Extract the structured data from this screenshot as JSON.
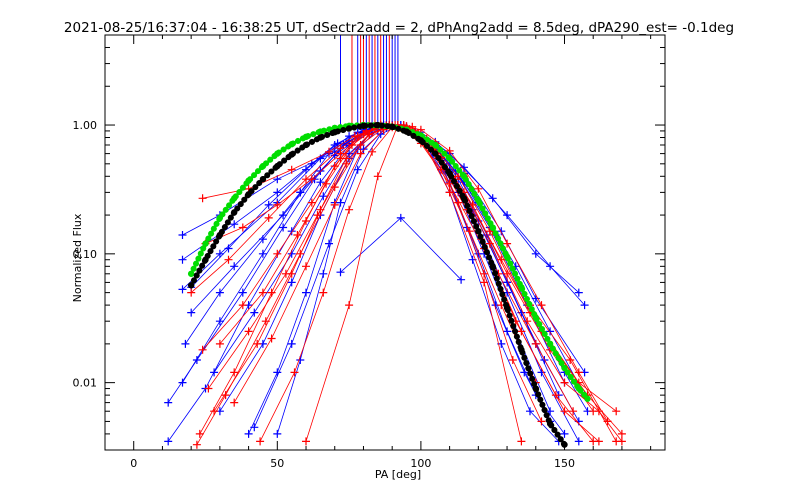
{
  "chart_data": {
    "type": "line",
    "title": "2021-08-25/16:37:04 - 16:38:25 UT, dSectr2add = 2, dPhAng2add = 8.5deg, dPA290_est= -0.1deg",
    "xlabel": "PA [deg]",
    "ylabel": "Normalized Flux",
    "xlim": [
      -10,
      185
    ],
    "ylim": [
      0.003,
      5.0
    ],
    "yscale": "log",
    "x_ticks": [
      0,
      50,
      100,
      150
    ],
    "y_ticks": [
      0.01,
      0.1,
      1.0
    ],
    "y_tick_labels": [
      "0.01",
      "0.10",
      "1.00"
    ],
    "grid": false,
    "legend": "none",
    "colors": {
      "red": "#ff0000",
      "blue": "#0000ff",
      "green": "#00dd00",
      "black": "#000000"
    },
    "peak_markers": {
      "x": [
        72,
        76,
        78,
        79,
        80,
        81,
        82,
        83,
        84,
        85,
        86,
        87,
        88,
        89,
        90,
        91,
        92
      ],
      "color": [
        "blue",
        "red",
        "blue",
        "red",
        "red",
        "blue",
        "red",
        "blue",
        "red",
        "blue",
        "red",
        "blue",
        "blue",
        "red",
        "blue",
        "blue",
        "blue"
      ],
      "y_from": 1.0,
      "y_to": 5.0
    },
    "series": [
      {
        "color": "green",
        "style": "thick-dots",
        "x": [
          20,
          25,
          30,
          35,
          40,
          45,
          50,
          55,
          60,
          65,
          70,
          75,
          80,
          85,
          90,
          95,
          100,
          105,
          110,
          115,
          120,
          125,
          130,
          135,
          140,
          145,
          150,
          155,
          158
        ],
        "y": [
          0.07,
          0.12,
          0.19,
          0.27,
          0.37,
          0.48,
          0.6,
          0.71,
          0.81,
          0.89,
          0.95,
          0.985,
          1.0,
          0.995,
          0.97,
          0.92,
          0.83,
          0.7,
          0.55,
          0.4,
          0.26,
          0.16,
          0.095,
          0.055,
          0.032,
          0.02,
          0.013,
          0.009,
          0.0075
        ]
      },
      {
        "color": "black",
        "style": "thick-dots",
        "x": [
          20,
          25,
          30,
          35,
          40,
          45,
          50,
          55,
          60,
          65,
          70,
          75,
          80,
          85,
          90,
          95,
          100,
          105,
          110,
          115,
          120,
          125,
          130,
          135,
          140,
          145,
          150
        ],
        "y": [
          0.057,
          0.09,
          0.14,
          0.21,
          0.29,
          0.38,
          0.48,
          0.59,
          0.7,
          0.8,
          0.88,
          0.94,
          0.985,
          1.0,
          0.97,
          0.89,
          0.76,
          0.6,
          0.42,
          0.27,
          0.15,
          0.08,
          0.038,
          0.018,
          0.009,
          0.0048,
          0.0033
        ]
      },
      {
        "color": "blue",
        "style": "line-plus",
        "x": [
          17,
          30,
          50,
          70,
          75,
          80,
          88,
          95,
          105,
          115,
          130,
          145,
          157
        ],
        "y": [
          0.14,
          0.2,
          0.38,
          0.62,
          0.75,
          0.88,
          0.98,
          0.93,
          0.74,
          0.47,
          0.2,
          0.08,
          0.04
        ]
      },
      {
        "color": "blue",
        "style": "line-plus",
        "x": [
          17,
          30,
          50,
          65,
          75,
          85,
          90,
          100,
          110,
          125,
          140,
          155
        ],
        "y": [
          0.053,
          0.1,
          0.25,
          0.55,
          0.82,
          0.96,
          1.0,
          0.88,
          0.6,
          0.27,
          0.1,
          0.05
        ]
      },
      {
        "color": "blue",
        "style": "line-plus",
        "x": [
          17,
          30,
          45,
          58,
          68,
          78,
          87,
          95,
          105,
          115,
          128,
          140,
          157
        ],
        "y": [
          0.01,
          0.03,
          0.1,
          0.3,
          0.6,
          0.88,
          1.0,
          0.95,
          0.7,
          0.42,
          0.15,
          0.045,
          0.012
        ]
      },
      {
        "color": "blue",
        "style": "line-plus",
        "x": [
          30,
          45,
          55,
          65,
          75,
          82,
          90,
          100,
          110,
          120,
          130,
          140
        ],
        "y": [
          0.006,
          0.02,
          0.06,
          0.2,
          0.55,
          0.85,
          0.98,
          0.83,
          0.45,
          0.18,
          0.06,
          0.02
        ]
      },
      {
        "color": "blue",
        "style": "line-plus",
        "x": [
          40,
          50,
          60,
          70,
          78,
          85,
          92,
          100,
          110,
          120,
          130,
          140,
          150
        ],
        "y": [
          0.004,
          0.012,
          0.05,
          0.25,
          0.65,
          0.92,
          1.0,
          0.8,
          0.36,
          0.1,
          0.025,
          0.008,
          0.004
        ]
      },
      {
        "color": "blue",
        "style": "line-plus",
        "x": [
          50,
          58,
          66,
          72,
          80,
          88,
          95,
          102,
          110,
          118,
          128,
          138,
          148
        ],
        "y": [
          0.004,
          0.015,
          0.07,
          0.25,
          0.65,
          0.95,
          0.98,
          0.7,
          0.3,
          0.09,
          0.02,
          0.006,
          0.0035
        ]
      },
      {
        "color": "blue",
        "style": "line-plus",
        "x": [
          17,
          35,
          50,
          62,
          70,
          78,
          86,
          94,
          102,
          110,
          120,
          133,
          145,
          157
        ],
        "y": [
          0.09,
          0.17,
          0.3,
          0.5,
          0.7,
          0.87,
          0.98,
          0.96,
          0.78,
          0.5,
          0.25,
          0.08,
          0.025,
          0.008
        ]
      },
      {
        "color": "blue",
        "style": "line-plus",
        "x": [
          12,
          25,
          40,
          55,
          65,
          75,
          85,
          93,
          100,
          108,
          118,
          130,
          142,
          155
        ],
        "y": [
          0.0035,
          0.009,
          0.04,
          0.15,
          0.36,
          0.7,
          0.96,
          1.0,
          0.82,
          0.5,
          0.2,
          0.05,
          0.012,
          0.0035
        ]
      },
      {
        "color": "blue",
        "style": "line-plus",
        "x": [
          18,
          30,
          45,
          58,
          70,
          80,
          88,
          95,
          105,
          113,
          123,
          135,
          148
        ],
        "y": [
          0.02,
          0.05,
          0.13,
          0.3,
          0.58,
          0.86,
          0.99,
          0.97,
          0.68,
          0.38,
          0.14,
          0.035,
          0.008
        ]
      },
      {
        "color": "blue",
        "style": "line-plus",
        "x": [
          20,
          35,
          52,
          65,
          74,
          82,
          89,
          97,
          106,
          115,
          126,
          138,
          150,
          158
        ],
        "y": [
          0.035,
          0.08,
          0.2,
          0.44,
          0.72,
          0.92,
          1.0,
          0.92,
          0.64,
          0.36,
          0.14,
          0.04,
          0.012,
          0.006
        ]
      },
      {
        "color": "blue",
        "style": "line-plus",
        "x": [
          12,
          22,
          38,
          52,
          63,
          73,
          82,
          90,
          98,
          107,
          118,
          130,
          143,
          155
        ],
        "y": [
          0.007,
          0.015,
          0.05,
          0.16,
          0.38,
          0.7,
          0.93,
          1.0,
          0.88,
          0.55,
          0.22,
          0.06,
          0.015,
          0.005
        ]
      },
      {
        "color": "blue",
        "style": "line-plus",
        "x": [
          28,
          42,
          55,
          66,
          75,
          83,
          90,
          97,
          105,
          113,
          122,
          133,
          145
        ],
        "y": [
          0.012,
          0.035,
          0.1,
          0.28,
          0.6,
          0.88,
          0.99,
          0.9,
          0.6,
          0.3,
          0.1,
          0.025,
          0.006
        ]
      },
      {
        "color": "blue",
        "style": "line-plus",
        "x": [
          20,
          33,
          47,
          60,
          71,
          80,
          88,
          96,
          104,
          112,
          124,
          137,
          150
        ],
        "y": [
          0.055,
          0.11,
          0.24,
          0.45,
          0.72,
          0.92,
          1.0,
          0.9,
          0.7,
          0.44,
          0.16,
          0.04,
          0.01
        ]
      },
      {
        "color": "blue",
        "style": "line-plus",
        "x": [
          42,
          55,
          68,
          78,
          86,
          93,
          100,
          108,
          116,
          126,
          136,
          145
        ],
        "y": [
          0.0045,
          0.02,
          0.12,
          0.45,
          0.85,
          1.0,
          0.83,
          0.45,
          0.16,
          0.04,
          0.012,
          0.005
        ]
      },
      {
        "color": "blue",
        "style": "line-plus",
        "x": [
          72,
          93,
          114
        ],
        "y": [
          0.072,
          0.19,
          0.063
        ]
      },
      {
        "color": "red",
        "style": "line-plus",
        "x": [
          24,
          40,
          55,
          68,
          77,
          85,
          92,
          100,
          110,
          120,
          130,
          142,
          155,
          165
        ],
        "y": [
          0.27,
          0.32,
          0.45,
          0.62,
          0.82,
          0.95,
          1.0,
          0.92,
          0.63,
          0.32,
          0.12,
          0.04,
          0.012,
          0.005
        ]
      },
      {
        "color": "red",
        "style": "line-plus",
        "x": [
          25,
          38,
          50,
          62,
          72,
          80,
          88,
          95,
          105,
          115,
          125,
          138,
          152,
          168
        ],
        "y": [
          0.12,
          0.16,
          0.24,
          0.38,
          0.6,
          0.85,
          0.99,
          0.98,
          0.72,
          0.4,
          0.15,
          0.04,
          0.015,
          0.0035
        ]
      },
      {
        "color": "red",
        "style": "line-plus",
        "x": [
          23,
          35,
          48,
          60,
          70,
          78,
          86,
          93,
          100,
          110,
          122,
          135,
          150,
          162
        ],
        "y": [
          0.004,
          0.012,
          0.05,
          0.18,
          0.48,
          0.82,
          1.0,
          0.95,
          0.72,
          0.35,
          0.11,
          0.025,
          0.006,
          0.0035
        ]
      },
      {
        "color": "red",
        "style": "line-plus",
        "x": [
          28,
          43,
          55,
          65,
          74,
          82,
          89,
          97,
          106,
          116,
          127,
          140,
          153
        ],
        "y": [
          0.006,
          0.02,
          0.07,
          0.22,
          0.55,
          0.85,
          0.98,
          0.88,
          0.55,
          0.22,
          0.07,
          0.02,
          0.006
        ]
      },
      {
        "color": "red",
        "style": "line-plus",
        "x": [
          30,
          45,
          57,
          67,
          76,
          84,
          91,
          98,
          107,
          117,
          128,
          140
        ],
        "y": [
          0.02,
          0.05,
          0.14,
          0.35,
          0.7,
          0.94,
          1.0,
          0.85,
          0.45,
          0.15,
          0.04,
          0.01
        ]
      },
      {
        "color": "red",
        "style": "line-plus",
        "x": [
          22,
          32,
          46,
          58,
          70,
          79,
          87,
          94,
          103,
          112,
          124,
          137,
          150,
          162,
          170
        ],
        "y": [
          0.0033,
          0.008,
          0.03,
          0.1,
          0.33,
          0.7,
          0.95,
          0.99,
          0.74,
          0.38,
          0.12,
          0.03,
          0.01,
          0.006,
          0.0035
        ]
      },
      {
        "color": "red",
        "style": "line-plus",
        "x": [
          44,
          56,
          66,
          75,
          83,
          90,
          97,
          105,
          113,
          122,
          132,
          142
        ],
        "y": [
          0.0035,
          0.012,
          0.05,
          0.22,
          0.62,
          0.96,
          0.97,
          0.6,
          0.25,
          0.07,
          0.015,
          0.005
        ]
      },
      {
        "color": "red",
        "style": "line-plus",
        "x": [
          24,
          38,
          50,
          62,
          72,
          80,
          88,
          96,
          105,
          115,
          128,
          142,
          158,
          170
        ],
        "y": [
          0.018,
          0.04,
          0.1,
          0.25,
          0.55,
          0.85,
          0.99,
          0.92,
          0.62,
          0.3,
          0.09,
          0.025,
          0.008,
          0.004
        ]
      },
      {
        "color": "red",
        "style": "line-plus",
        "x": [
          20,
          33,
          47,
          60,
          72,
          81,
          89,
          96,
          104,
          113,
          124,
          138,
          155,
          168
        ],
        "y": [
          0.05,
          0.09,
          0.19,
          0.38,
          0.66,
          0.9,
          1.0,
          0.93,
          0.7,
          0.4,
          0.15,
          0.035,
          0.01,
          0.006
        ]
      },
      {
        "color": "red",
        "style": "line-plus",
        "x": [
          35,
          48,
          60,
          70,
          79,
          87,
          94,
          102,
          111,
          121,
          133,
          147,
          160
        ],
        "y": [
          0.007,
          0.022,
          0.08,
          0.24,
          0.6,
          0.92,
          1.0,
          0.78,
          0.4,
          0.13,
          0.03,
          0.008,
          0.0035
        ]
      },
      {
        "color": "red",
        "style": "line-plus",
        "x": [
          26,
          40,
          53,
          64,
          74,
          82,
          90,
          98,
          107,
          118,
          130,
          145,
          160
        ],
        "y": [
          0.009,
          0.025,
          0.07,
          0.2,
          0.5,
          0.84,
          0.99,
          0.9,
          0.56,
          0.24,
          0.07,
          0.018,
          0.006
        ]
      },
      {
        "color": "red",
        "style": "line-plus",
        "x": [
          60,
          75,
          85,
          92,
          100,
          110,
          122,
          135
        ],
        "y": [
          0.0035,
          0.04,
          0.4,
          1.0,
          0.8,
          0.3,
          0.06,
          0.0035
        ]
      }
    ]
  }
}
